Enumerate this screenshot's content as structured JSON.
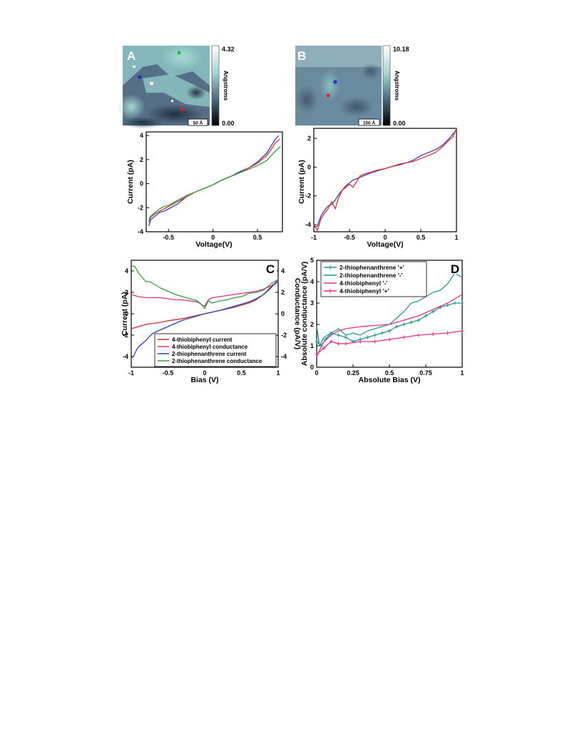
{
  "panelA": {
    "letter": "A",
    "scale_bar": "50 Å",
    "colorbar": {
      "max": "4.32",
      "min": "0.00",
      "unit": "Angstroms"
    },
    "markers": [
      "green",
      "blue",
      "red"
    ]
  },
  "panelB": {
    "letter": "B",
    "scale_bar": "100 Å",
    "colorbar": {
      "max": "10.18",
      "min": "0.00",
      "unit": "Angstroms"
    },
    "markers": [
      "blue",
      "red"
    ]
  },
  "panelC": {
    "letter": "C"
  },
  "panelD": {
    "letter": "D"
  },
  "chart_data": [
    {
      "id": "A-iv",
      "type": "line",
      "xlabel": "Voltage(V)",
      "ylabel": "Current (pA)",
      "xlim": [
        -0.75,
        0.78
      ],
      "ylim": [
        -4,
        4.3
      ],
      "xticks": [
        -0.5,
        0,
        0.5
      ],
      "xtick_labels": [
        "-0.5",
        "0",
        "0.5"
      ],
      "yticks": [
        -4,
        -2,
        0,
        2,
        4
      ],
      "ytick_labels": [
        "-4",
        "-2",
        "0",
        "2",
        "4"
      ],
      "series": [
        {
          "color": "#3040b0",
          "x": [
            -0.72,
            -0.7,
            -0.65,
            -0.6,
            -0.55,
            -0.5,
            -0.45,
            -0.4,
            -0.35,
            -0.3,
            -0.2,
            -0.1,
            0,
            0.1,
            0.2,
            0.3,
            0.4,
            0.5,
            0.6,
            0.65,
            0.7,
            0.74
          ],
          "y": [
            -3.5,
            -3.0,
            -2.7,
            -2.4,
            -2.3,
            -2.1,
            -1.9,
            -1.7,
            -1.4,
            -1.1,
            -0.7,
            -0.4,
            -0.1,
            0.3,
            0.6,
            1.0,
            1.3,
            1.8,
            2.5,
            3.1,
            3.7,
            4.0
          ]
        },
        {
          "color": "#e03030",
          "x": [
            -0.72,
            -0.7,
            -0.65,
            -0.6,
            -0.55,
            -0.5,
            -0.45,
            -0.4,
            -0.35,
            -0.3,
            -0.2,
            -0.1,
            0,
            0.1,
            0.2,
            0.3,
            0.4,
            0.5,
            0.6,
            0.65,
            0.7,
            0.75
          ],
          "y": [
            -3.2,
            -2.8,
            -2.5,
            -2.3,
            -2.1,
            -1.9,
            -1.7,
            -1.5,
            -1.3,
            -1.1,
            -0.7,
            -0.4,
            -0.1,
            0.3,
            0.6,
            0.9,
            1.3,
            1.7,
            2.3,
            2.8,
            3.4,
            3.7
          ]
        },
        {
          "color": "#30a040",
          "x": [
            -0.72,
            -0.7,
            -0.65,
            -0.6,
            -0.55,
            -0.5,
            -0.45,
            -0.4,
            -0.35,
            -0.3,
            -0.2,
            -0.1,
            0,
            0.1,
            0.2,
            0.3,
            0.4,
            0.5,
            0.6,
            0.65,
            0.7,
            0.76
          ],
          "y": [
            -3.0,
            -2.7,
            -2.4,
            -2.1,
            -1.9,
            -1.8,
            -1.6,
            -1.4,
            -1.2,
            -1.0,
            -0.7,
            -0.4,
            -0.1,
            0.3,
            0.6,
            0.9,
            1.2,
            1.5,
            1.9,
            2.3,
            2.7,
            3.1
          ]
        }
      ]
    },
    {
      "id": "B-iv",
      "type": "line",
      "xlabel": "Voltage(V)",
      "ylabel": "Current (pA)",
      "xlim": [
        -1,
        1
      ],
      "ylim": [
        -4.5,
        2.7
      ],
      "xticks": [
        -1,
        -0.5,
        0,
        0.5,
        1
      ],
      "xtick_labels": [
        "-1",
        "-0.5",
        "0",
        "0.5",
        "1"
      ],
      "yticks": [
        -4,
        -2,
        0,
        2
      ],
      "ytick_labels": [
        "-4",
        "-2",
        "0",
        "2"
      ],
      "series": [
        {
          "color": "#3040b0",
          "x": [
            -1,
            -0.95,
            -0.9,
            -0.85,
            -0.8,
            -0.75,
            -0.7,
            -0.65,
            -0.6,
            -0.55,
            -0.5,
            -0.45,
            -0.4,
            -0.35,
            -0.3,
            -0.2,
            -0.1,
            0,
            0.1,
            0.2,
            0.3,
            0.4,
            0.5,
            0.6,
            0.7,
            0.8,
            0.9,
            0.95,
            1
          ],
          "y": [
            -4.2,
            -4.1,
            -3.4,
            -3.0,
            -2.7,
            -2.6,
            -2.3,
            -1.9,
            -1.6,
            -1.3,
            -1.1,
            -0.9,
            -0.8,
            -0.7,
            -0.6,
            -0.4,
            -0.25,
            -0.1,
            0.05,
            0.2,
            0.3,
            0.5,
            0.8,
            1.0,
            1.2,
            1.5,
            2.0,
            2.3,
            2.6
          ]
        },
        {
          "color": "#e03030",
          "x": [
            -1,
            -0.95,
            -0.9,
            -0.85,
            -0.8,
            -0.75,
            -0.7,
            -0.65,
            -0.6,
            -0.55,
            -0.5,
            -0.45,
            -0.4,
            -0.35,
            -0.3,
            -0.2,
            -0.1,
            0,
            0.1,
            0.2,
            0.3,
            0.4,
            0.5,
            0.6,
            0.7,
            0.8,
            0.9,
            0.95,
            1
          ],
          "y": [
            -4.0,
            -4.4,
            -3.6,
            -3.2,
            -2.9,
            -2.4,
            -2.9,
            -2.1,
            -1.6,
            -1.4,
            -1.2,
            -1.4,
            -1.0,
            -0.6,
            -0.5,
            -0.35,
            -0.2,
            -0.1,
            0.05,
            0.15,
            0.3,
            0.4,
            0.6,
            0.8,
            1.0,
            1.4,
            1.9,
            2.1,
            2.7
          ]
        }
      ]
    },
    {
      "id": "C",
      "type": "line",
      "xlabel": "Bias (V)",
      "ylabel": "Current (pA)",
      "y2label": "Conductance (pA/V)",
      "xlim": [
        -1,
        1
      ],
      "ylim": [
        -5,
        5
      ],
      "xticks": [
        -1,
        -0.5,
        0,
        0.5,
        1
      ],
      "xtick_labels": [
        "-1",
        "-0.5",
        "0",
        "0.5",
        "1"
      ],
      "yticks": [
        -4,
        -2,
        0,
        2,
        4
      ],
      "ytick_labels": [
        "-4",
        "-2",
        "0",
        "2",
        "4"
      ],
      "legend_position": "bottom-right",
      "series": [
        {
          "name": "4-thiobiphenyl current",
          "color": "#c03030",
          "x": [
            -1,
            -0.9,
            -0.8,
            -0.7,
            -0.6,
            -0.5,
            -0.4,
            -0.3,
            -0.2,
            -0.1,
            0,
            0.1,
            0.2,
            0.3,
            0.4,
            0.5,
            0.6,
            0.7,
            0.8,
            0.9,
            1
          ],
          "y": [
            -1.4,
            -1.2,
            -1.0,
            -0.9,
            -0.8,
            -0.65,
            -0.55,
            -0.45,
            -0.3,
            -0.15,
            0,
            0.15,
            0.3,
            0.45,
            0.6,
            0.8,
            1.0,
            1.3,
            1.8,
            2.5,
            3.0
          ]
        },
        {
          "name": "4-thiobiphenyl conductance",
          "color": "#e0308a",
          "x": [
            -1,
            -0.9,
            -0.8,
            -0.7,
            -0.6,
            -0.5,
            -0.4,
            -0.3,
            -0.2,
            -0.1,
            -0.05,
            0,
            0.05,
            0.1,
            0.2,
            0.3,
            0.4,
            0.5,
            0.6,
            0.7,
            0.8,
            0.9,
            1
          ],
          "y": [
            1.8,
            1.6,
            1.5,
            1.5,
            1.5,
            1.4,
            1.3,
            1.3,
            1.2,
            1.1,
            0.9,
            0.7,
            1.3,
            1.5,
            1.6,
            1.7,
            1.8,
            1.9,
            2.0,
            2.1,
            2.3,
            2.6,
            3.0
          ]
        },
        {
          "name": "2-thiophenanthrene current",
          "color": "#3040b0",
          "x": [
            -1,
            -0.97,
            -0.93,
            -0.9,
            -0.85,
            -0.8,
            -0.75,
            -0.7,
            -0.6,
            -0.5,
            -0.4,
            -0.3,
            -0.2,
            -0.1,
            0,
            0.1,
            0.2,
            0.3,
            0.4,
            0.5,
            0.6,
            0.7,
            0.8,
            0.9,
            1
          ],
          "y": [
            -4.1,
            -4.0,
            -3.4,
            -3.1,
            -2.8,
            -2.5,
            -2.1,
            -1.8,
            -1.5,
            -1.2,
            -0.9,
            -0.6,
            -0.4,
            -0.2,
            0,
            0.15,
            0.3,
            0.5,
            0.7,
            0.9,
            1.1,
            1.4,
            1.8,
            2.4,
            3.2
          ]
        },
        {
          "name": "2-thiophenanthrene conductance",
          "color": "#30a040",
          "x": [
            -1,
            -0.95,
            -0.9,
            -0.85,
            -0.8,
            -0.75,
            -0.7,
            -0.6,
            -0.5,
            -0.4,
            -0.3,
            -0.2,
            -0.1,
            -0.05,
            0,
            0.05,
            0.1,
            0.2,
            0.3,
            0.4,
            0.5,
            0.6,
            0.7,
            0.8,
            0.9,
            1
          ],
          "y": [
            4.5,
            4.4,
            3.8,
            3.4,
            3.0,
            3.0,
            2.8,
            2.4,
            2.1,
            1.8,
            1.6,
            1.4,
            1.2,
            0.9,
            0.5,
            1.2,
            1.0,
            1.2,
            1.3,
            1.5,
            1.6,
            1.9,
            2.0,
            2.2,
            2.8,
            3.2
          ]
        }
      ]
    },
    {
      "id": "D",
      "type": "line",
      "xlabel": "Absolute Bias (V)",
      "ylabel": "Absolute conductance (pA/V)",
      "xlim": [
        0,
        1
      ],
      "ylim": [
        0,
        5
      ],
      "xticks": [
        0,
        0.25,
        0.5,
        0.75,
        1
      ],
      "xtick_labels": [
        "0",
        "0.25",
        "0.5",
        "0.75",
        "1"
      ],
      "yticks": [
        0,
        1,
        2,
        3,
        4,
        5
      ],
      "ytick_labels": [
        "0",
        "1",
        "2",
        "3",
        "4",
        "5"
      ],
      "legend_position": "top-left",
      "series": [
        {
          "name": "2-thiophenanthrene '+'",
          "color": "#1f9a90",
          "marker": "plus",
          "x": [
            0,
            0.03,
            0.06,
            0.1,
            0.15,
            0.2,
            0.25,
            0.3,
            0.35,
            0.4,
            0.45,
            0.5,
            0.55,
            0.6,
            0.65,
            0.7,
            0.75,
            0.8,
            0.85,
            0.9,
            0.95,
            1
          ],
          "y": [
            1.2,
            1.0,
            1.3,
            1.6,
            1.5,
            1.4,
            1.2,
            1.3,
            1.4,
            1.5,
            1.6,
            1.7,
            1.9,
            2.0,
            2.1,
            2.2,
            2.4,
            2.6,
            2.8,
            2.9,
            3.0,
            3.0
          ]
        },
        {
          "name": "2-thiophenanthrene '-'",
          "color": "#1f9a90",
          "x": [
            0,
            0.02,
            0.05,
            0.1,
            0.15,
            0.2,
            0.25,
            0.3,
            0.35,
            0.4,
            0.45,
            0.5,
            0.55,
            0.6,
            0.65,
            0.7,
            0.75,
            0.8,
            0.85,
            0.9,
            0.95,
            1
          ],
          "y": [
            1.9,
            1.0,
            1.4,
            1.6,
            1.8,
            1.5,
            1.6,
            1.5,
            1.7,
            1.8,
            1.9,
            2.0,
            2.3,
            2.6,
            3.0,
            3.1,
            3.3,
            3.5,
            3.6,
            3.9,
            4.4,
            4.2
          ]
        },
        {
          "name": "4-thiobiphenyl '-'",
          "color": "#e0308a",
          "x": [
            0,
            0.02,
            0.05,
            0.1,
            0.15,
            0.2,
            0.3,
            0.4,
            0.5,
            0.6,
            0.7,
            0.8,
            0.9,
            1
          ],
          "y": [
            0.5,
            0.8,
            1.2,
            1.5,
            1.7,
            1.8,
            1.9,
            1.95,
            2.0,
            2.2,
            2.4,
            2.7,
            3.0,
            3.4
          ]
        },
        {
          "name": "4-thiobiphenyl '+'",
          "color": "#e0308a",
          "marker": "plus",
          "x": [
            0,
            0.05,
            0.1,
            0.15,
            0.2,
            0.3,
            0.4,
            0.5,
            0.6,
            0.7,
            0.8,
            0.9,
            1
          ],
          "y": [
            0.6,
            0.9,
            1.2,
            1.1,
            1.1,
            1.2,
            1.2,
            1.3,
            1.4,
            1.5,
            1.55,
            1.6,
            1.7
          ]
        }
      ]
    }
  ]
}
